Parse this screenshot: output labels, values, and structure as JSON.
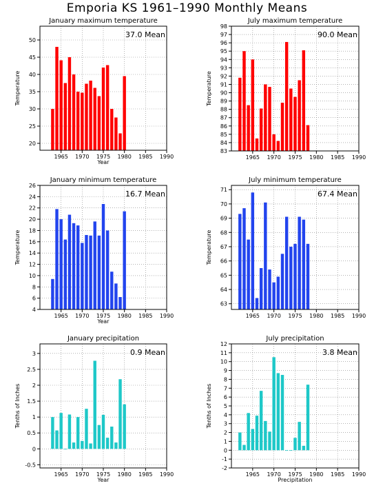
{
  "title": "Emporia KS   1961–1990 Monthly Means",
  "chart_data": [
    {
      "type": "bar",
      "title": "January maximum temperature",
      "xlabel": "Year",
      "ylabel": "Temperature",
      "mean_label": "37.0 Mean",
      "color": "#ff0000",
      "xlim": [
        1960,
        1990
      ],
      "ylim": [
        18,
        54
      ],
      "xticks": [
        1965,
        1970,
        1975,
        1980,
        1985,
        1990
      ],
      "yticks": [
        20,
        25,
        30,
        35,
        40,
        45,
        50
      ],
      "grid": true,
      "x": [
        1963,
        1964,
        1965,
        1966,
        1967,
        1968,
        1969,
        1970,
        1971,
        1972,
        1973,
        1974,
        1975,
        1976,
        1977,
        1978,
        1979,
        1980
      ],
      "values": [
        30.0,
        48.0,
        44.1,
        37.5,
        45.0,
        40.0,
        35.0,
        34.7,
        37.3,
        38.2,
        36.1,
        33.7,
        42.0,
        42.7,
        30.0,
        27.5,
        22.9,
        39.5
      ]
    },
    {
      "type": "bar",
      "title": "July maximum temperature",
      "xlabel": "",
      "ylabel": "Temperature",
      "mean_label": "90.0 Mean",
      "color": "#ff0000",
      "xlim": [
        1960,
        1990
      ],
      "ylim": [
        83,
        98
      ],
      "xticks": [
        1965,
        1970,
        1975,
        1980,
        1985,
        1990
      ],
      "yticks": [
        83,
        84,
        85,
        86,
        87,
        88,
        89,
        90,
        91,
        92,
        93,
        94,
        95,
        96,
        97,
        98
      ],
      "grid": true,
      "x": [
        1962,
        1963,
        1964,
        1965,
        1966,
        1967,
        1968,
        1969,
        1970,
        1971,
        1972,
        1973,
        1974,
        1975,
        1976,
        1977,
        1978,
        1979
      ],
      "values": [
        91.8,
        95.0,
        88.5,
        94.0,
        84.5,
        88.1,
        91.0,
        90.7,
        85.0,
        84.2,
        88.8,
        96.1,
        90.5,
        89.5,
        91.5,
        95.1,
        86.1,
        null
      ]
    },
    {
      "type": "bar",
      "title": "January minimum temperature",
      "xlabel": "Year",
      "ylabel": "Temperature",
      "mean_label": "16.7 Mean",
      "color": "#2244ee",
      "xlim": [
        1960,
        1990
      ],
      "ylim": [
        4,
        26
      ],
      "xticks": [
        1965,
        1970,
        1975,
        1980,
        1985,
        1990
      ],
      "yticks": [
        4,
        6,
        8,
        10,
        12,
        14,
        16,
        18,
        20,
        22,
        24,
        26
      ],
      "grid": true,
      "x": [
        1963,
        1964,
        1965,
        1966,
        1967,
        1968,
        1969,
        1970,
        1971,
        1972,
        1973,
        1974,
        1975,
        1976,
        1977,
        1978,
        1979,
        1980
      ],
      "values": [
        9.4,
        21.8,
        20.0,
        16.4,
        20.8,
        19.3,
        18.9,
        15.8,
        17.2,
        17.1,
        19.6,
        17.1,
        22.7,
        18.0,
        10.7,
        8.6,
        6.2,
        21.4
      ]
    },
    {
      "type": "bar",
      "title": "July minimum temperature",
      "xlabel": "",
      "ylabel": "Temperature",
      "mean_label": "67.4 Mean",
      "color": "#2244ee",
      "xlim": [
        1960,
        1990
      ],
      "ylim": [
        62.6,
        71.3
      ],
      "xticks": [
        1965,
        1970,
        1975,
        1980,
        1985,
        1990
      ],
      "yticks": [
        63,
        64,
        65,
        66,
        67,
        68,
        69,
        70,
        71
      ],
      "grid": true,
      "x": [
        1962,
        1963,
        1964,
        1965,
        1966,
        1967,
        1968,
        1969,
        1970,
        1971,
        1972,
        1973,
        1974,
        1975,
        1976,
        1977,
        1978,
        1979
      ],
      "values": [
        69.3,
        69.7,
        67.5,
        70.8,
        63.4,
        65.5,
        70.1,
        65.4,
        64.5,
        64.9,
        66.5,
        69.1,
        67.0,
        67.2,
        69.1,
        68.9,
        67.2,
        null
      ]
    },
    {
      "type": "bar",
      "title": "January precipitation",
      "xlabel": "Year",
      "ylabel": "Tenths of Inches",
      "mean_label": "0.9 Mean",
      "color": "#1ec8c8",
      "xlim": [
        1960,
        1990
      ],
      "ylim": [
        -0.6,
        3.3
      ],
      "xticks": [
        1965,
        1970,
        1975,
        1980,
        1985,
        1990
      ],
      "yticks": [
        -0.5,
        0,
        0.5,
        1,
        1.5,
        2,
        2.5,
        3
      ],
      "grid": true,
      "x": [
        1963,
        1964,
        1965,
        1966,
        1967,
        1968,
        1969,
        1970,
        1971,
        1972,
        1973,
        1974,
        1975,
        1976,
        1977,
        1978,
        1979,
        1980
      ],
      "values": [
        1.0,
        0.58,
        1.13,
        0.0,
        1.08,
        0.2,
        1.0,
        0.25,
        1.26,
        0.17,
        2.77,
        0.75,
        1.07,
        0.35,
        0.7,
        0.2,
        2.19,
        1.4
      ]
    },
    {
      "type": "bar",
      "title": "July precipitation",
      "xlabel": "Precipitation",
      "ylabel": "Tenths of Inches",
      "mean_label": "3.8 Mean",
      "color": "#1ec8c8",
      "xlim": [
        1960,
        1990
      ],
      "ylim": [
        -2,
        12
      ],
      "xticks": [
        1965,
        1970,
        1975,
        1980,
        1985,
        1990
      ],
      "yticks": [
        -2,
        -1,
        0,
        1,
        2,
        3,
        4,
        5,
        6,
        7,
        8,
        9,
        10,
        11,
        12
      ],
      "grid": true,
      "x": [
        1962,
        1963,
        1964,
        1965,
        1966,
        1967,
        1968,
        1969,
        1970,
        1971,
        1972,
        1973,
        1974,
        1975,
        1976,
        1977,
        1978,
        1979
      ],
      "values": [
        2.0,
        0.6,
        4.2,
        2.4,
        3.9,
        6.7,
        3.3,
        2.1,
        10.5,
        8.7,
        8.5,
        0.0,
        0.0,
        1.4,
        3.2,
        0.5,
        7.4,
        null
      ]
    }
  ]
}
